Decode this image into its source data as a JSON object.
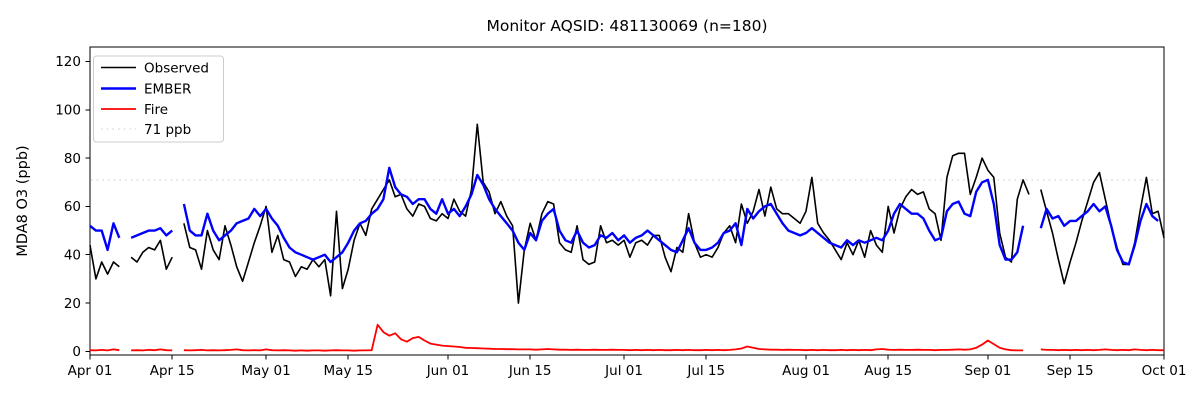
{
  "title": "Monitor AQSID: 481130069 (n=180)",
  "chart_data": {
    "type": "line",
    "title": "Monitor AQSID: 481130069 (n=180)",
    "xlabel": "",
    "ylabel": "MDA8 O3 (ppb)",
    "ylim": [
      -1.5,
      126
    ],
    "grid": false,
    "x_unit": "daily, Apr 01 through Oct 01",
    "x_tick_labels": [
      "Apr 01",
      "Apr 15",
      "May 01",
      "May 15",
      "Jun 01",
      "Jun 15",
      "Jul 01",
      "Jul 15",
      "Aug 01",
      "Aug 15",
      "Sep 01",
      "Sep 15",
      "Oct 01"
    ],
    "x_tick_days": [
      0,
      14,
      30,
      44,
      61,
      75,
      91,
      105,
      122,
      136,
      153,
      167,
      183
    ],
    "y_ticks": [
      0,
      20,
      40,
      60,
      80,
      100,
      120
    ],
    "reference_line": {
      "label": "71 ppb",
      "value": 71,
      "color": "#d3d3d3",
      "style": "dotted"
    },
    "legend": {
      "position": "upper-left",
      "entries": [
        "Observed",
        "EMBER",
        "Fire",
        "71 ppb"
      ]
    },
    "series": [
      {
        "name": "Observed",
        "color": "#000000",
        "line_width": 1.6,
        "values": [
          44,
          30,
          37,
          32,
          37,
          35,
          null,
          39,
          37,
          41,
          43,
          42,
          46,
          34,
          39,
          null,
          53,
          43,
          42,
          34,
          50,
          42,
          38,
          52,
          44,
          35,
          29,
          37,
          45,
          52,
          60,
          41,
          48,
          38,
          37,
          31,
          35,
          34,
          38,
          35,
          38,
          23,
          58,
          26,
          34,
          46,
          53,
          48,
          59,
          63,
          67,
          71,
          64,
          65,
          59,
          56,
          61,
          60,
          55,
          54,
          57,
          55,
          63,
          58,
          56,
          67,
          94,
          70,
          66,
          57,
          62,
          56,
          52,
          20,
          42,
          53,
          46,
          57,
          62,
          61,
          45,
          42,
          41,
          52,
          38,
          36,
          37,
          52,
          45,
          46,
          44,
          46,
          39,
          45,
          46,
          44,
          48,
          48,
          39,
          33,
          43,
          41,
          57,
          45,
          39,
          40,
          39,
          43,
          49,
          52,
          45,
          61,
          53,
          58,
          67,
          56,
          68,
          59,
          57,
          57,
          55,
          53,
          58,
          72,
          53,
          49,
          46,
          42,
          38,
          45,
          40,
          46,
          39,
          50,
          44,
          41,
          60,
          49,
          59,
          64,
          67,
          65,
          66,
          59,
          57,
          46,
          72,
          81,
          82,
          82,
          65,
          72,
          80,
          75,
          72,
          49,
          39,
          37,
          63,
          71,
          65,
          null,
          67,
          58,
          49,
          38,
          28,
          37,
          45,
          54,
          62,
          70,
          74,
          63,
          52,
          43,
          36,
          36,
          45,
          59,
          72,
          57,
          58,
          47
        ]
      },
      {
        "name": "EMBER",
        "color": "#0000ff",
        "line_width": 2.4,
        "values": [
          52,
          50,
          50,
          42,
          53,
          47,
          null,
          47,
          48,
          49,
          50,
          50,
          51,
          48,
          50,
          null,
          61,
          50,
          48,
          48,
          57,
          50,
          46,
          48,
          50,
          53,
          54,
          55,
          59,
          56,
          59,
          55,
          52,
          47,
          43,
          41,
          40,
          39,
          38,
          39,
          40,
          37,
          39,
          41,
          45,
          50,
          53,
          54,
          57,
          59,
          63,
          76,
          68,
          65,
          64,
          61,
          63,
          63,
          59,
          57,
          63,
          57,
          59,
          56,
          60,
          65,
          73,
          69,
          63,
          59,
          56,
          53,
          50,
          45,
          42,
          49,
          46,
          54,
          57,
          59,
          50,
          46,
          45,
          50,
          45,
          43,
          44,
          48,
          47,
          49,
          46,
          48,
          45,
          47,
          48,
          50,
          48,
          46,
          44,
          42,
          41,
          46,
          51,
          45,
          42,
          42,
          43,
          45,
          49,
          50,
          53,
          44,
          59,
          55,
          58,
          60,
          61,
          57,
          53,
          50,
          49,
          48,
          49,
          51,
          49,
          47,
          45,
          44,
          43,
          46,
          44,
          46,
          45,
          46,
          47,
          46,
          50,
          57,
          61,
          59,
          57,
          57,
          55,
          50,
          46,
          47,
          58,
          61,
          62,
          57,
          56,
          66,
          70,
          71,
          61,
          44,
          38,
          38,
          41,
          52,
          null,
          null,
          51,
          59,
          55,
          56,
          52,
          54,
          54,
          56,
          58,
          61,
          58,
          60,
          52,
          42,
          37,
          36,
          44,
          54,
          61,
          56,
          54,
          null
        ]
      },
      {
        "name": "Fire",
        "color": "#ff0000",
        "line_width": 1.8,
        "values": [
          0.5,
          0.4,
          0.6,
          0.4,
          0.8,
          0.5,
          null,
          0.4,
          0.5,
          0.4,
          0.6,
          0.5,
          0.8,
          0.5,
          0.4,
          null,
          0.5,
          0.4,
          0.5,
          0.6,
          0.4,
          0.5,
          0.4,
          0.5,
          0.6,
          0.8,
          0.5,
          0.4,
          0.5,
          0.4,
          0.8,
          0.5,
          0.4,
          0.5,
          0.4,
          0.3,
          0.4,
          0.3,
          0.4,
          0.4,
          0.3,
          0.4,
          0.5,
          0.4,
          0.4,
          0.3,
          0.4,
          0.4,
          0.5,
          11,
          8,
          6.5,
          7.5,
          5,
          4,
          5.5,
          6,
          4.5,
          3.2,
          2.8,
          2.4,
          2.2,
          2,
          1.8,
          1.5,
          1.4,
          1.3,
          1.2,
          1.1,
          1,
          1,
          0.9,
          0.9,
          0.8,
          0.8,
          0.8,
          0.7,
          0.8,
          1,
          0.8,
          0.7,
          0.7,
          0.6,
          0.7,
          0.6,
          0.6,
          0.7,
          0.6,
          0.6,
          0.7,
          0.6,
          0.6,
          0.5,
          0.6,
          0.5,
          0.6,
          0.5,
          0.6,
          0.5,
          0.5,
          0.6,
          0.5,
          0.6,
          0.5,
          0.5,
          0.6,
          0.5,
          0.6,
          0.5,
          0.6,
          0.8,
          1.2,
          2,
          1.5,
          1,
          0.8,
          0.7,
          0.7,
          0.6,
          0.7,
          0.6,
          0.6,
          0.5,
          0.6,
          0.5,
          0.6,
          0.5,
          0.5,
          0.6,
          0.5,
          0.6,
          0.5,
          0.6,
          0.5,
          0.8,
          1,
          0.7,
          0.6,
          0.7,
          0.6,
          0.6,
          0.7,
          0.6,
          0.6,
          0.5,
          0.6,
          0.6,
          0.7,
          0.8,
          0.7,
          0.8,
          1.5,
          2.8,
          4.5,
          3,
          1.5,
          0.8,
          0.5,
          0.4,
          0.4,
          null,
          null,
          0.8,
          0.6,
          0.6,
          0.5,
          0.6,
          0.5,
          0.6,
          0.5,
          0.6,
          0.5,
          0.6,
          0.8,
          0.6,
          0.5,
          0.6,
          0.5,
          0.8,
          0.6,
          0.5,
          0.6,
          0.5,
          0.5
        ]
      }
    ]
  }
}
